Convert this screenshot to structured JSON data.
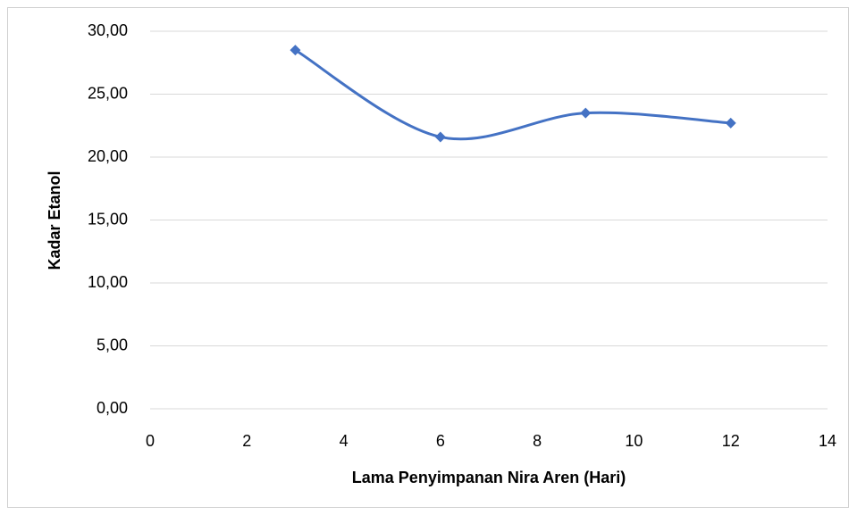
{
  "chart_data": {
    "type": "scatter-smooth",
    "x_label": "Lama Penyimpanan Nira Aren (Hari)",
    "y_label": "Kadar Etanol",
    "x": [
      3,
      6,
      9,
      12
    ],
    "series": [
      {
        "color": "#4472c4",
        "values": [
          28.5,
          21.6,
          23.5,
          22.7
        ]
      }
    ],
    "xlim": [
      0,
      14
    ],
    "xticks": [
      0,
      2,
      4,
      6,
      8,
      10,
      12,
      14
    ],
    "ylim": [
      0,
      30
    ],
    "yticks": [
      {
        "value": 0,
        "label": "0,00"
      },
      {
        "value": 5,
        "label": "5,00"
      },
      {
        "value": 10,
        "label": "10,00"
      },
      {
        "value": 15,
        "label": "15,00"
      },
      {
        "value": 20,
        "label": "20,00"
      },
      {
        "value": 25,
        "label": "25,00"
      },
      {
        "value": 30,
        "label": "30,00"
      }
    ],
    "grid": true
  }
}
